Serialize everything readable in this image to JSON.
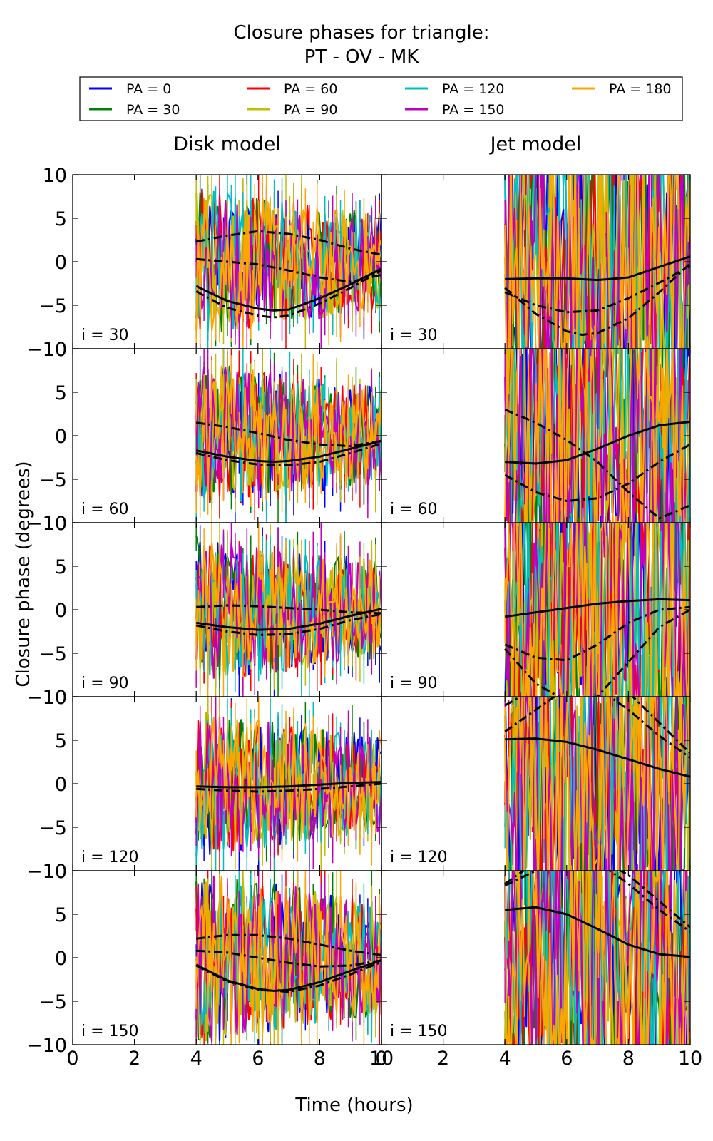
{
  "chart_data": {
    "type": "line",
    "title": "Closure phases for triangle:",
    "subtitle": "PT - OV - MK",
    "xlabel": "Time (hours)",
    "ylabel": "Closure phase (degrees)",
    "xlim": [
      0,
      10
    ],
    "ylim": [
      -10,
      10
    ],
    "xticks": [
      "0",
      "2",
      "4",
      "6",
      "8",
      "10"
    ],
    "yticks": [
      "10",
      "5",
      "0",
      "−5",
      "−10"
    ],
    "grid": false,
    "legend_position": "top",
    "columns": [
      "Disk model",
      "Jet model"
    ],
    "rows": [
      "i = 30",
      "i = 60",
      "i = 90",
      "i = 120",
      "i = 150"
    ],
    "series": [
      {
        "name": "PA = 0",
        "color": "#0000ff"
      },
      {
        "name": "PA = 30",
        "color": "#008000"
      },
      {
        "name": "PA = 60",
        "color": "#ff0000"
      },
      {
        "name": "PA = 90",
        "color": "#bfbf00"
      },
      {
        "name": "PA = 120",
        "color": "#00bfbf"
      },
      {
        "name": "PA = 150",
        "color": "#bf00bf"
      },
      {
        "name": "PA = 180",
        "color": "#ffa500"
      }
    ],
    "data_time_range": [
      4,
      10
    ],
    "model_curves": [
      {
        "row": "i = 30",
        "column": "Disk model",
        "style": "solid",
        "x": [
          4,
          5,
          6,
          6.5,
          7,
          8,
          9,
          10
        ],
        "y": [
          -2.8,
          -4.5,
          -5.4,
          -5.6,
          -5.5,
          -4.2,
          -2.6,
          -0.8
        ]
      },
      {
        "row": "i = 30",
        "column": "Disk model",
        "style": "dashdot",
        "x": [
          4,
          5,
          6,
          6.5,
          7,
          8,
          9,
          10
        ],
        "y": [
          -3.4,
          -5.3,
          -6.2,
          -6.4,
          -6.2,
          -4.8,
          -3.0,
          -1.0
        ]
      },
      {
        "row": "i = 30",
        "column": "Disk model",
        "style": "dashdot",
        "x": [
          4,
          5,
          6,
          7,
          8,
          9,
          10
        ],
        "y": [
          0.3,
          0.0,
          -0.3,
          -1.0,
          -1.8,
          -2.3,
          -1.5
        ]
      },
      {
        "row": "i = 30",
        "column": "Disk model",
        "style": "dashdot",
        "x": [
          4,
          5,
          6,
          7,
          8,
          9,
          10
        ],
        "y": [
          2.3,
          3.0,
          3.5,
          3.2,
          2.5,
          1.5,
          0.8
        ]
      },
      {
        "row": "i = 30",
        "column": "Jet model",
        "style": "solid",
        "x": [
          4,
          5,
          6,
          7,
          8,
          9,
          10
        ],
        "y": [
          -2.0,
          -1.9,
          -1.9,
          -2.1,
          -1.8,
          -0.6,
          0.6
        ]
      },
      {
        "row": "i = 30",
        "column": "Jet model",
        "style": "dashdot",
        "x": [
          4,
          5,
          6,
          7,
          8,
          9,
          10
        ],
        "y": [
          -3.5,
          -5.0,
          -5.8,
          -5.6,
          -4.2,
          -2.4,
          -0.5
        ]
      },
      {
        "row": "i = 30",
        "column": "Jet model",
        "style": "dashdot",
        "x": [
          4,
          5,
          6,
          6.5,
          7,
          8,
          9,
          10
        ],
        "y": [
          -3.0,
          -6.0,
          -8.0,
          -8.4,
          -8.2,
          -6.5,
          -3.5,
          -0.2
        ]
      },
      {
        "row": "i = 60",
        "column": "Disk model",
        "style": "solid",
        "x": [
          4,
          5,
          6,
          6.5,
          7,
          8,
          9,
          10
        ],
        "y": [
          -1.7,
          -2.4,
          -2.9,
          -3.0,
          -2.9,
          -2.4,
          -1.5,
          -0.6
        ]
      },
      {
        "row": "i = 60",
        "column": "Disk model",
        "style": "dashdot",
        "x": [
          4,
          5,
          6,
          7,
          8,
          9,
          10
        ],
        "y": [
          -2.0,
          -2.8,
          -3.3,
          -3.4,
          -3.0,
          -2.0,
          -0.9
        ]
      },
      {
        "row": "i = 60",
        "column": "Disk model",
        "style": "dashdot",
        "x": [
          4,
          5,
          6,
          7,
          8,
          9,
          10
        ],
        "y": [
          1.5,
          1.0,
          0.3,
          -0.5,
          -1.0,
          -1.2,
          -0.6
        ]
      },
      {
        "row": "i = 60",
        "column": "Jet model",
        "style": "solid",
        "x": [
          4,
          5,
          6,
          7,
          8,
          9,
          10
        ],
        "y": [
          -3.0,
          -3.2,
          -2.8,
          -1.5,
          0.0,
          1.2,
          1.6
        ]
      },
      {
        "row": "i = 60",
        "column": "Jet model",
        "style": "dashdot",
        "x": [
          4,
          5,
          6,
          7,
          8,
          9,
          10
        ],
        "y": [
          -4.5,
          -6.5,
          -7.5,
          -7.2,
          -5.5,
          -3.0,
          -1.0
        ]
      },
      {
        "row": "i = 60",
        "column": "Jet model",
        "style": "dashdot",
        "x": [
          4,
          5,
          6,
          7,
          8,
          9,
          10
        ],
        "y": [
          3.0,
          1.5,
          -0.5,
          -3.0,
          -6.5,
          -9.5,
          -8.0
        ]
      },
      {
        "row": "i = 90",
        "column": "Disk model",
        "style": "solid",
        "x": [
          4,
          5,
          6,
          7,
          8,
          9,
          10
        ],
        "y": [
          -1.5,
          -2.0,
          -2.3,
          -2.2,
          -1.6,
          -0.7,
          0.1
        ]
      },
      {
        "row": "i = 90",
        "column": "Disk model",
        "style": "dashdot",
        "x": [
          4,
          5,
          6,
          7,
          8,
          9,
          10
        ],
        "y": [
          -1.8,
          -2.5,
          -2.9,
          -2.8,
          -2.2,
          -1.2,
          -0.5
        ]
      },
      {
        "row": "i = 90",
        "column": "Disk model",
        "style": "dashdot",
        "x": [
          4,
          5,
          6,
          7,
          8,
          9,
          10
        ],
        "y": [
          0.3,
          0.5,
          0.4,
          0.2,
          0.0,
          -0.3,
          -0.4
        ]
      },
      {
        "row": "i = 90",
        "column": "Jet model",
        "style": "solid",
        "x": [
          4,
          5,
          6,
          7,
          8,
          9,
          10
        ],
        "y": [
          -0.8,
          -0.3,
          0.2,
          0.7,
          1.0,
          1.2,
          1.1
        ]
      },
      {
        "row": "i = 90",
        "column": "Jet model",
        "style": "dashdot",
        "x": [
          4,
          5,
          6,
          7,
          8,
          9,
          10
        ],
        "y": [
          -4.0,
          -5.5,
          -5.8,
          -4.0,
          -1.5,
          0.0,
          0.3
        ]
      },
      {
        "row": "i = 90",
        "column": "Jet model",
        "style": "dashdot",
        "x": [
          4,
          5,
          6,
          7,
          8,
          9,
          10
        ],
        "y": [
          -4.5,
          -8.5,
          -10.5,
          -10.0,
          -6.0,
          -2.0,
          0.0
        ]
      },
      {
        "row": "i = 120",
        "column": "Disk model",
        "style": "solid",
        "x": [
          4,
          5,
          6,
          7,
          8,
          9,
          10
        ],
        "y": [
          -0.3,
          -0.4,
          -0.4,
          -0.3,
          -0.1,
          0.1,
          0.2
        ]
      },
      {
        "row": "i = 120",
        "column": "Disk model",
        "style": "dashdot",
        "x": [
          4,
          5,
          6,
          7,
          8,
          9,
          10
        ],
        "y": [
          -0.6,
          -0.8,
          -0.9,
          -0.8,
          -0.6,
          -0.3,
          0.0
        ]
      },
      {
        "row": "i = 120",
        "column": "Jet model",
        "style": "solid",
        "x": [
          4,
          5,
          6,
          7,
          8,
          9,
          10
        ],
        "y": [
          5.1,
          5.2,
          4.8,
          3.9,
          2.8,
          1.7,
          0.8
        ]
      },
      {
        "row": "i = 120",
        "column": "Jet model",
        "style": "dashdot",
        "x": [
          4,
          5,
          6,
          7,
          8,
          9,
          10
        ],
        "y": [
          9.0,
          11.0,
          12.0,
          11.0,
          8.5,
          5.5,
          3.0
        ]
      },
      {
        "row": "i = 120",
        "column": "Jet model",
        "style": "dashdot",
        "x": [
          4,
          5,
          6,
          7,
          8,
          9,
          10
        ],
        "y": [
          6.0,
          8.5,
          11.0,
          12.0,
          10.5,
          7.0,
          3.5
        ]
      },
      {
        "row": "i = 150",
        "column": "Disk model",
        "style": "solid",
        "x": [
          4,
          5,
          6,
          6.5,
          7,
          8,
          9,
          10
        ],
        "y": [
          -0.8,
          -2.6,
          -3.6,
          -3.8,
          -3.7,
          -2.8,
          -1.5,
          -0.3
        ]
      },
      {
        "row": "i = 150",
        "column": "Disk model",
        "style": "dashdot",
        "x": [
          4,
          5,
          6,
          7,
          8,
          9,
          10
        ],
        "y": [
          -0.9,
          -2.7,
          -3.7,
          -3.9,
          -3.2,
          -1.9,
          -0.5
        ]
      },
      {
        "row": "i = 150",
        "column": "Disk model",
        "style": "dashdot",
        "x": [
          4,
          5,
          6,
          7,
          8,
          9,
          10
        ],
        "y": [
          0.8,
          0.6,
          0.0,
          -0.6,
          -1.0,
          -0.9,
          -0.3
        ]
      },
      {
        "row": "i = 150",
        "column": "Disk model",
        "style": "dashdot",
        "x": [
          4,
          5,
          6,
          7,
          8,
          9,
          10
        ],
        "y": [
          2.2,
          2.6,
          2.6,
          2.2,
          1.5,
          0.8,
          0.3
        ]
      },
      {
        "row": "i = 150",
        "column": "Jet model",
        "style": "solid",
        "x": [
          4,
          5,
          6,
          7,
          8,
          9,
          10
        ],
        "y": [
          5.5,
          5.8,
          5.0,
          3.3,
          1.5,
          0.4,
          0.1
        ]
      },
      {
        "row": "i = 150",
        "column": "Jet model",
        "style": "dashdot",
        "x": [
          4,
          5,
          6,
          7,
          8,
          9,
          10
        ],
        "y": [
          8.3,
          10.0,
          11.5,
          11.0,
          8.5,
          5.5,
          3.0
        ]
      },
      {
        "row": "i = 150",
        "column": "Jet model",
        "style": "dashdot",
        "x": [
          4,
          5,
          6,
          7,
          8,
          9,
          10
        ],
        "y": [
          8.5,
          11.0,
          12.0,
          11.5,
          9.5,
          6.5,
          3.5
        ]
      }
    ]
  }
}
